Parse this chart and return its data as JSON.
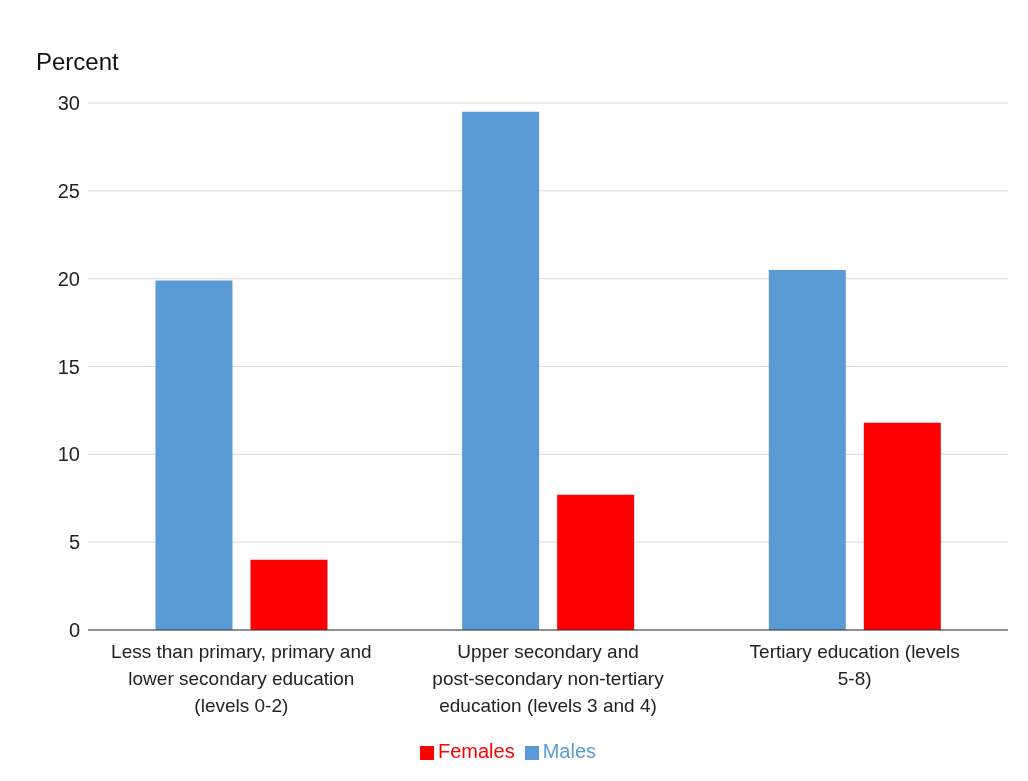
{
  "chart_data": {
    "type": "bar",
    "ylabel": "Percent",
    "categories": [
      "Less than primary, primary and lower secondary education (levels 0-2)",
      "Upper secondary and post-secondary non-tertiary education (levels 3 and 4)",
      "Tertiary education (levels 5-8)"
    ],
    "series": [
      {
        "name": "Males",
        "color": "#5b9bd5",
        "values": [
          19.9,
          29.5,
          20.5
        ]
      },
      {
        "name": "Females",
        "color": "#ff0000",
        "values": [
          4.0,
          7.7,
          11.8
        ]
      }
    ],
    "ylim": [
      0,
      30
    ],
    "yticks": [
      0,
      5,
      10,
      15,
      20,
      25,
      30
    ],
    "grid": "y",
    "legend": "bottom"
  }
}
